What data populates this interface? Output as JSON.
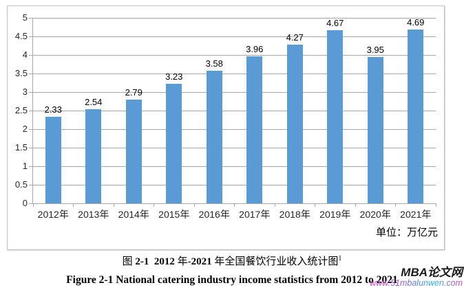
{
  "chart_data": {
    "type": "bar",
    "title": "",
    "categories": [
      "2012年",
      "2013年",
      "2014年",
      "2015年",
      "2016年",
      "2017年",
      "2018年",
      "2019年",
      "2020年",
      "2021年"
    ],
    "values": [
      2.33,
      2.54,
      2.79,
      3.23,
      3.58,
      3.96,
      4.27,
      4.67,
      3.95,
      4.69
    ],
    "data_labels": [
      "2.33",
      "2.54",
      "2.79",
      "3.23",
      "3.58",
      "3.96",
      "4.27",
      "4.67",
      "3.95",
      "4.69"
    ],
    "y_ticks": [
      "5",
      "4.5",
      "4",
      "3.5",
      "3",
      "2.5",
      "2",
      "1.5",
      "1",
      "0.5",
      "0"
    ],
    "ylim": [
      0,
      5
    ],
    "grid": true,
    "legend_position": "none",
    "bar_color": "#5B9BD5",
    "grid_color": "#a6a6a6",
    "unit_label": "单位：万亿元"
  },
  "captions": {
    "chinese_parts": [
      {
        "text": "图 ",
        "bold": false
      },
      {
        "text": "2-1",
        "bold": true
      },
      {
        "text": "  ",
        "bold": false
      },
      {
        "text": "2012",
        "bold": true
      },
      {
        "text": " 年-",
        "bold": false
      },
      {
        "text": "2021",
        "bold": true
      },
      {
        "text": " 年全国餐饮行业收入统计图",
        "bold": false
      },
      {
        "text": "1",
        "bold": false,
        "sup": true
      }
    ],
    "english": "Figure 2-1 National catering industry income statistics from 2012 to 2021"
  },
  "watermark": {
    "brand": "MBA论文网",
    "url": "www.51mbalunwen.com"
  }
}
